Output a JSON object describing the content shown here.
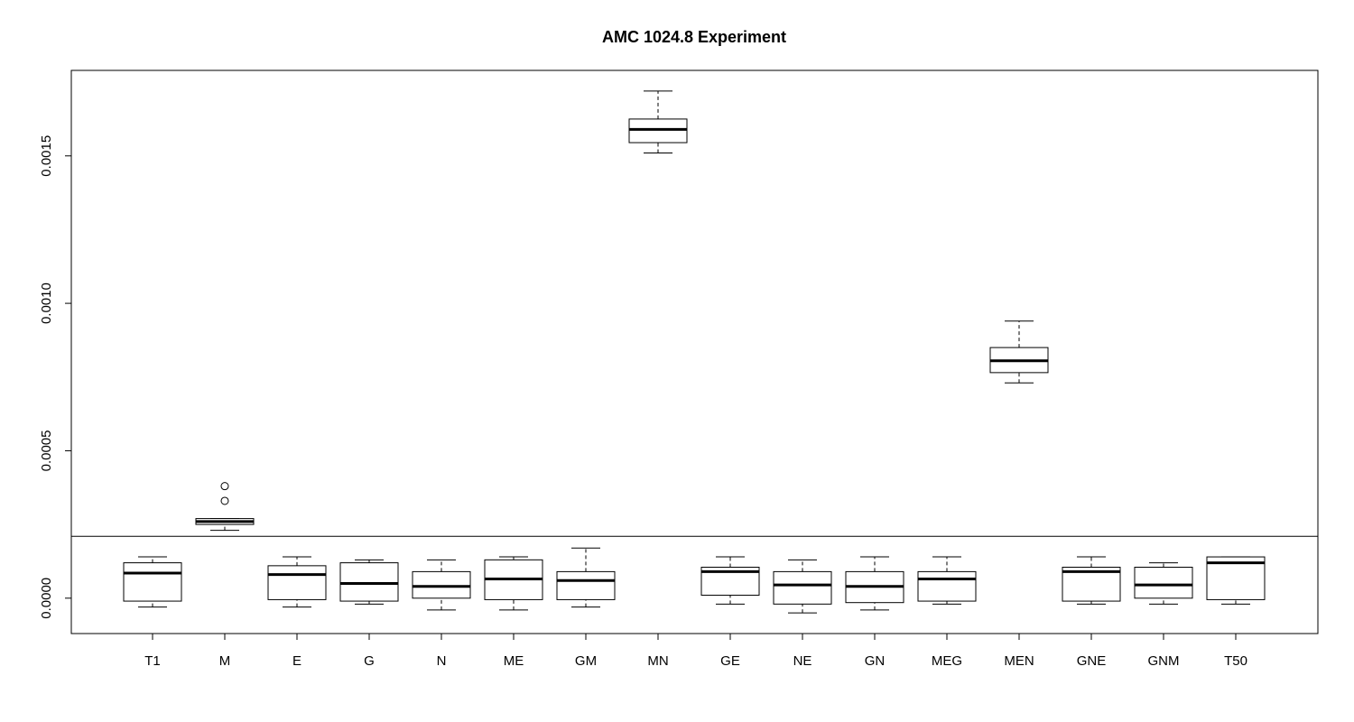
{
  "chart_data": {
    "type": "boxplot",
    "title": "AMC 1024.8 Experiment",
    "xlabel": "",
    "ylabel": "",
    "ylim": [
      -0.00012,
      0.00179
    ],
    "yticks": [
      0.0,
      0.0005,
      0.001,
      0.0015
    ],
    "ytick_labels": [
      "0.0000",
      "0.0005",
      "0.0010",
      "0.0015"
    ],
    "reference_line": 0.00021,
    "grid": false,
    "categories": [
      "T1",
      "M",
      "E",
      "G",
      "N",
      "ME",
      "GM",
      "MN",
      "GE",
      "NE",
      "GN",
      "MEG",
      "MEN",
      "GNE",
      "GNM",
      "T50"
    ],
    "boxes": [
      {
        "category": "T1",
        "whisker_low": -3e-05,
        "q1": -1e-05,
        "median": 8.5e-05,
        "q3": 0.00012,
        "whisker_high": 0.00014,
        "outliers": []
      },
      {
        "category": "M",
        "whisker_low": 0.00023,
        "q1": 0.00025,
        "median": 0.00026,
        "q3": 0.00027,
        "whisker_high": 0.00027,
        "outliers": [
          0.00033,
          0.00038
        ]
      },
      {
        "category": "E",
        "whisker_low": -3e-05,
        "q1": -5e-06,
        "median": 8e-05,
        "q3": 0.00011,
        "whisker_high": 0.00014,
        "outliers": []
      },
      {
        "category": "G",
        "whisker_low": -2e-05,
        "q1": -1e-05,
        "median": 5e-05,
        "q3": 0.00012,
        "whisker_high": 0.00013,
        "outliers": []
      },
      {
        "category": "N",
        "whisker_low": -4e-05,
        "q1": 0.0,
        "median": 4e-05,
        "q3": 9e-05,
        "whisker_high": 0.00013,
        "outliers": []
      },
      {
        "category": "ME",
        "whisker_low": -4e-05,
        "q1": -5e-06,
        "median": 6.5e-05,
        "q3": 0.00013,
        "whisker_high": 0.00014,
        "outliers": []
      },
      {
        "category": "GM",
        "whisker_low": -3e-05,
        "q1": -5e-06,
        "median": 6e-05,
        "q3": 9e-05,
        "whisker_high": 0.00017,
        "outliers": []
      },
      {
        "category": "MN",
        "whisker_low": 0.00151,
        "q1": 0.001545,
        "median": 0.00159,
        "q3": 0.001625,
        "whisker_high": 0.00172,
        "outliers": []
      },
      {
        "category": "GE",
        "whisker_low": -2e-05,
        "q1": 1e-05,
        "median": 9e-05,
        "q3": 0.000105,
        "whisker_high": 0.00014,
        "outliers": []
      },
      {
        "category": "NE",
        "whisker_low": -5e-05,
        "q1": -2e-05,
        "median": 4.5e-05,
        "q3": 9e-05,
        "whisker_high": 0.00013,
        "outliers": []
      },
      {
        "category": "GN",
        "whisker_low": -4e-05,
        "q1": -1.5e-05,
        "median": 4e-05,
        "q3": 9e-05,
        "whisker_high": 0.00014,
        "outliers": []
      },
      {
        "category": "MEG",
        "whisker_low": -2e-05,
        "q1": -1e-05,
        "median": 6.5e-05,
        "q3": 9e-05,
        "whisker_high": 0.00014,
        "outliers": []
      },
      {
        "category": "MEN",
        "whisker_low": 0.00073,
        "q1": 0.000765,
        "median": 0.000805,
        "q3": 0.00085,
        "whisker_high": 0.00094,
        "outliers": []
      },
      {
        "category": "GNE",
        "whisker_low": -2e-05,
        "q1": -1e-05,
        "median": 9e-05,
        "q3": 0.000105,
        "whisker_high": 0.00014,
        "outliers": []
      },
      {
        "category": "GNM",
        "whisker_low": -2e-05,
        "q1": 0.0,
        "median": 4.5e-05,
        "q3": 0.000105,
        "whisker_high": 0.00012,
        "outliers": []
      },
      {
        "category": "T50",
        "whisker_low": -2e-05,
        "q1": -5e-06,
        "median": 0.00012,
        "q3": 0.00014,
        "whisker_high": 0.00014,
        "outliers": []
      }
    ]
  }
}
